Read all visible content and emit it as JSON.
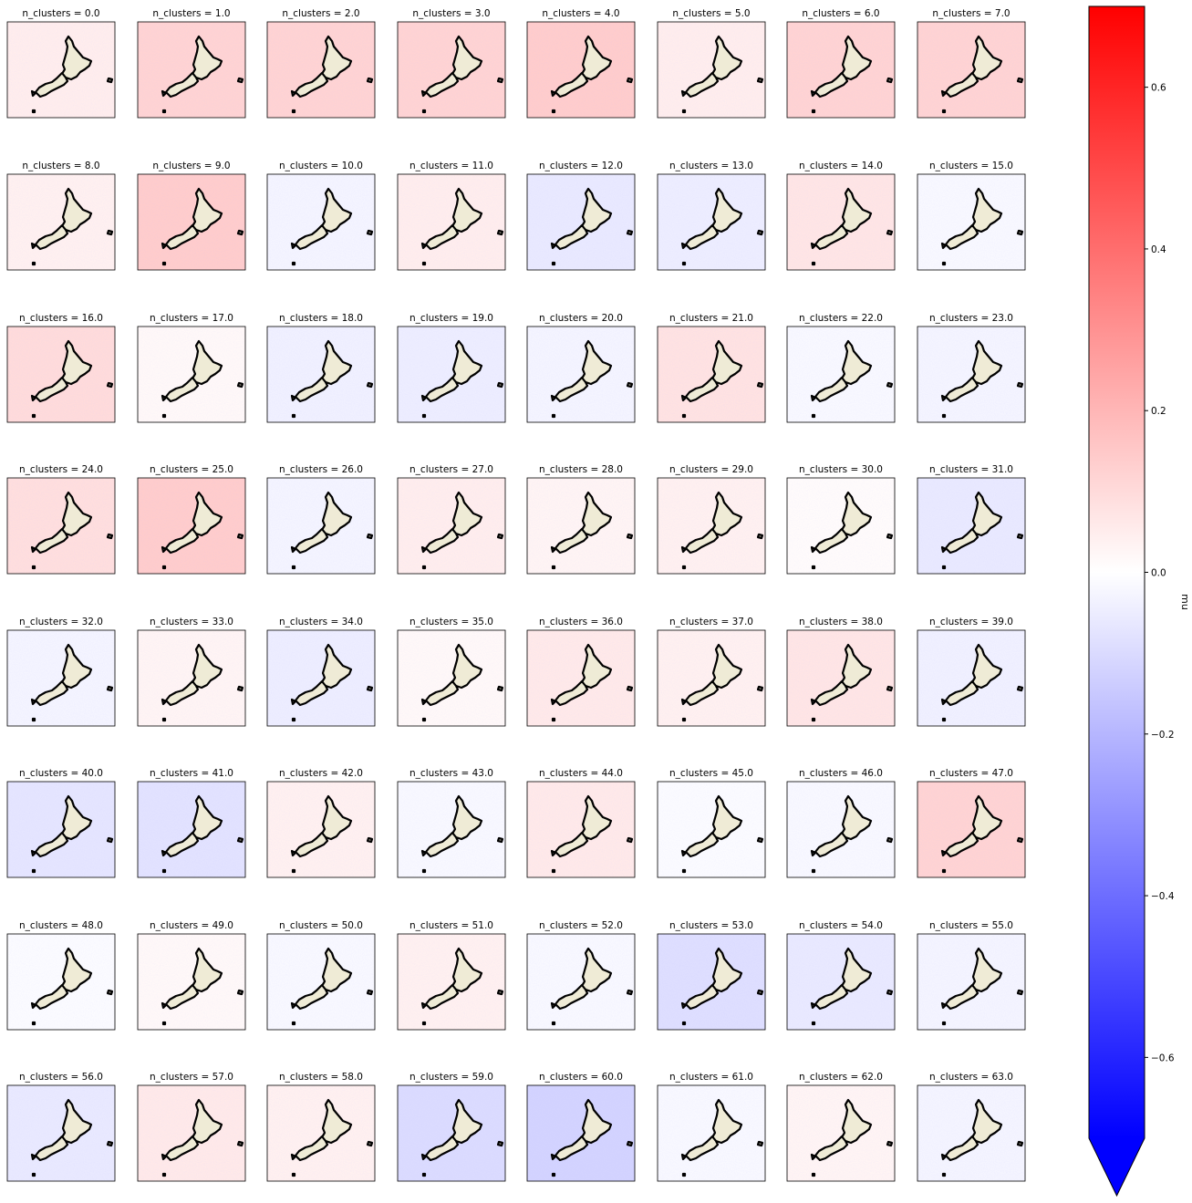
{
  "figure": {
    "panel_title_prefix": "n_clusters = ",
    "colorbar": {
      "label": "mu",
      "ticks": [
        "0.6",
        "0.4",
        "0.2",
        "0.0",
        "−0.2",
        "−0.4",
        "−0.6"
      ],
      "tick_values": [
        0.6,
        0.4,
        0.2,
        0.0,
        -0.2,
        -0.4,
        -0.6
      ],
      "vmin": -0.7,
      "vmax": 0.7,
      "extend": "min",
      "colormap": "bwr",
      "colors": {
        "low": "#0000ff",
        "mid": "#ffffff",
        "high": "#ff0000"
      }
    },
    "land_color": "#efebd6",
    "coast_color": "#000000"
  },
  "chart_data": {
    "type": "heatmap",
    "layout": "8 x 8 small-multiples of a field over New Zealand",
    "facet_variable": "n_clusters",
    "panels": [
      {
        "title": "n_clusters = 0.0",
        "n_clusters": 0.0,
        "mu_mean": 0.05
      },
      {
        "title": "n_clusters = 1.0",
        "n_clusters": 1.0,
        "mu_mean": 0.12
      },
      {
        "title": "n_clusters = 2.0",
        "n_clusters": 2.0,
        "mu_mean": 0.12
      },
      {
        "title": "n_clusters = 3.0",
        "n_clusters": 3.0,
        "mu_mean": 0.12
      },
      {
        "title": "n_clusters = 4.0",
        "n_clusters": 4.0,
        "mu_mean": 0.14
      },
      {
        "title": "n_clusters = 5.0",
        "n_clusters": 5.0,
        "mu_mean": 0.05
      },
      {
        "title": "n_clusters = 6.0",
        "n_clusters": 6.0,
        "mu_mean": 0.12
      },
      {
        "title": "n_clusters = 7.0",
        "n_clusters": 7.0,
        "mu_mean": 0.12
      },
      {
        "title": "n_clusters = 8.0",
        "n_clusters": 8.0,
        "mu_mean": 0.04
      },
      {
        "title": "n_clusters = 9.0",
        "n_clusters": 9.0,
        "mu_mean": 0.14
      },
      {
        "title": "n_clusters = 10.0",
        "n_clusters": 10.0,
        "mu_mean": -0.03
      },
      {
        "title": "n_clusters = 11.0",
        "n_clusters": 11.0,
        "mu_mean": 0.05
      },
      {
        "title": "n_clusters = 12.0",
        "n_clusters": 12.0,
        "mu_mean": -0.06
      },
      {
        "title": "n_clusters = 13.0",
        "n_clusters": 13.0,
        "mu_mean": -0.05
      },
      {
        "title": "n_clusters = 14.0",
        "n_clusters": 14.0,
        "mu_mean": 0.07
      },
      {
        "title": "n_clusters = 15.0",
        "n_clusters": 15.0,
        "mu_mean": -0.02
      },
      {
        "title": "n_clusters = 16.0",
        "n_clusters": 16.0,
        "mu_mean": 0.1
      },
      {
        "title": "n_clusters = 17.0",
        "n_clusters": 17.0,
        "mu_mean": 0.02
      },
      {
        "title": "n_clusters = 18.0",
        "n_clusters": 18.0,
        "mu_mean": -0.04
      },
      {
        "title": "n_clusters = 19.0",
        "n_clusters": 19.0,
        "mu_mean": -0.05
      },
      {
        "title": "n_clusters = 20.0",
        "n_clusters": 20.0,
        "mu_mean": -0.03
      },
      {
        "title": "n_clusters = 21.0",
        "n_clusters": 21.0,
        "mu_mean": 0.08
      },
      {
        "title": "n_clusters = 22.0",
        "n_clusters": 22.0,
        "mu_mean": -0.02
      },
      {
        "title": "n_clusters = 23.0",
        "n_clusters": 23.0,
        "mu_mean": -0.03
      },
      {
        "title": "n_clusters = 24.0",
        "n_clusters": 24.0,
        "mu_mean": 0.09
      },
      {
        "title": "n_clusters = 25.0",
        "n_clusters": 25.0,
        "mu_mean": 0.14
      },
      {
        "title": "n_clusters = 26.0",
        "n_clusters": 26.0,
        "mu_mean": -0.03
      },
      {
        "title": "n_clusters = 27.0",
        "n_clusters": 27.0,
        "mu_mean": 0.05
      },
      {
        "title": "n_clusters = 28.0",
        "n_clusters": 28.0,
        "mu_mean": 0.03
      },
      {
        "title": "n_clusters = 29.0",
        "n_clusters": 29.0,
        "mu_mean": 0.04
      },
      {
        "title": "n_clusters = 30.0",
        "n_clusters": 30.0,
        "mu_mean": 0.01
      },
      {
        "title": "n_clusters = 31.0",
        "n_clusters": 31.0,
        "mu_mean": -0.06
      },
      {
        "title": "n_clusters = 32.0",
        "n_clusters": 32.0,
        "mu_mean": -0.03
      },
      {
        "title": "n_clusters = 33.0",
        "n_clusters": 33.0,
        "mu_mean": 0.03
      },
      {
        "title": "n_clusters = 34.0",
        "n_clusters": 34.0,
        "mu_mean": -0.05
      },
      {
        "title": "n_clusters = 35.0",
        "n_clusters": 35.0,
        "mu_mean": 0.02
      },
      {
        "title": "n_clusters = 36.0",
        "n_clusters": 36.0,
        "mu_mean": 0.06
      },
      {
        "title": "n_clusters = 37.0",
        "n_clusters": 37.0,
        "mu_mean": 0.04
      },
      {
        "title": "n_clusters = 38.0",
        "n_clusters": 38.0,
        "mu_mean": 0.07
      },
      {
        "title": "n_clusters = 39.0",
        "n_clusters": 39.0,
        "mu_mean": -0.04
      },
      {
        "title": "n_clusters = 40.0",
        "n_clusters": 40.0,
        "mu_mean": -0.07
      },
      {
        "title": "n_clusters = 41.0",
        "n_clusters": 41.0,
        "mu_mean": -0.08
      },
      {
        "title": "n_clusters = 42.0",
        "n_clusters": 42.0,
        "mu_mean": 0.04
      },
      {
        "title": "n_clusters = 43.0",
        "n_clusters": 43.0,
        "mu_mean": -0.02
      },
      {
        "title": "n_clusters = 44.0",
        "n_clusters": 44.0,
        "mu_mean": 0.06
      },
      {
        "title": "n_clusters = 45.0",
        "n_clusters": 45.0,
        "mu_mean": -0.01
      },
      {
        "title": "n_clusters = 46.0",
        "n_clusters": 46.0,
        "mu_mean": -0.02
      },
      {
        "title": "n_clusters = 47.0",
        "n_clusters": 47.0,
        "mu_mean": 0.12
      },
      {
        "title": "n_clusters = 48.0",
        "n_clusters": 48.0,
        "mu_mean": -0.01
      },
      {
        "title": "n_clusters = 49.0",
        "n_clusters": 49.0,
        "mu_mean": 0.02
      },
      {
        "title": "n_clusters = 50.0",
        "n_clusters": 50.0,
        "mu_mean": -0.02
      },
      {
        "title": "n_clusters = 51.0",
        "n_clusters": 51.0,
        "mu_mean": 0.04
      },
      {
        "title": "n_clusters = 52.0",
        "n_clusters": 52.0,
        "mu_mean": -0.02
      },
      {
        "title": "n_clusters = 53.0",
        "n_clusters": 53.0,
        "mu_mean": -0.09
      },
      {
        "title": "n_clusters = 54.0",
        "n_clusters": 54.0,
        "mu_mean": -0.06
      },
      {
        "title": "n_clusters = 55.0",
        "n_clusters": 55.0,
        "mu_mean": -0.03
      },
      {
        "title": "n_clusters = 56.0",
        "n_clusters": 56.0,
        "mu_mean": -0.06
      },
      {
        "title": "n_clusters = 57.0",
        "n_clusters": 57.0,
        "mu_mean": 0.06
      },
      {
        "title": "n_clusters = 58.0",
        "n_clusters": 58.0,
        "mu_mean": 0.04
      },
      {
        "title": "n_clusters = 59.0",
        "n_clusters": 59.0,
        "mu_mean": -0.1
      },
      {
        "title": "n_clusters = 60.0",
        "n_clusters": 60.0,
        "mu_mean": -0.12
      },
      {
        "title": "n_clusters = 61.0",
        "n_clusters": 61.0,
        "mu_mean": -0.02
      },
      {
        "title": "n_clusters = 62.0",
        "n_clusters": 62.0,
        "mu_mean": 0.03
      },
      {
        "title": "n_clusters = 63.0",
        "n_clusters": 63.0,
        "mu_mean": -0.03
      }
    ]
  }
}
